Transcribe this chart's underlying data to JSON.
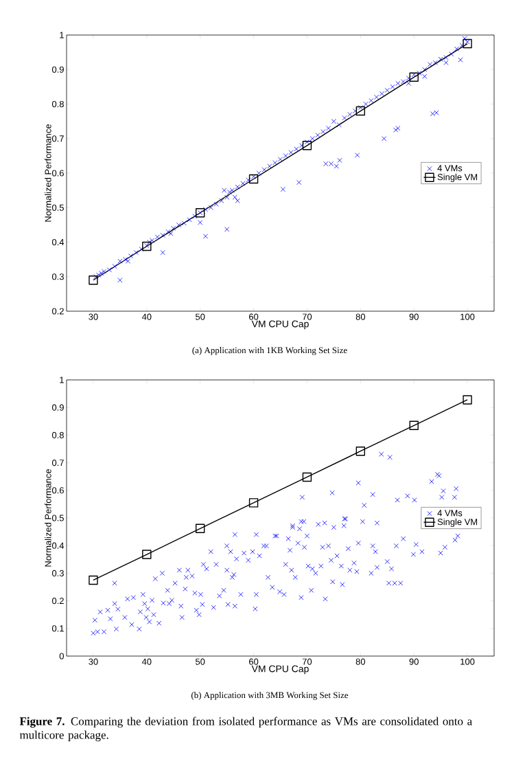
{
  "chart_data": [
    {
      "type": "scatter",
      "title": "(a)  Application with 1KB Working Set Size",
      "xlabel": "VM CPU Cap",
      "ylabel": "Normalized Performance",
      "xlim": [
        25,
        105
      ],
      "ylim": [
        0.2,
        1
      ],
      "xticks": [
        30,
        40,
        50,
        60,
        70,
        80,
        90,
        100
      ],
      "yticks": [
        0.2,
        0.3,
        0.4,
        0.5,
        0.6,
        0.7,
        0.8,
        0.9,
        1
      ],
      "legend": "right",
      "series": [
        {
          "name": "4 VMs",
          "marker": "cross",
          "color": "#0000ff",
          "x": [
            30.5,
            31,
            31.5,
            32,
            33,
            34,
            35,
            36,
            36.5,
            37,
            38,
            39,
            40,
            40.5,
            41,
            42,
            43,
            44,
            44.5,
            45,
            46,
            47,
            48,
            49,
            50,
            51,
            52,
            53,
            54,
            54.5,
            55,
            55.5,
            56,
            56.5,
            57,
            58,
            59,
            60,
            61,
            62,
            63,
            64,
            65,
            66,
            67,
            68,
            69,
            70,
            71,
            72,
            73,
            74,
            75,
            76,
            77,
            78,
            79,
            80,
            81,
            82,
            83,
            84,
            85,
            86,
            87,
            88,
            89,
            90,
            91,
            92,
            93,
            94,
            95,
            96,
            97,
            98,
            99,
            100,
            99.5,
            96,
            92,
            89,
            35,
            43,
            50,
            51,
            55,
            57,
            65.5,
            68.5,
            73.5,
            74.5,
            75.5,
            76.1,
            79.4,
            84.4,
            86.6,
            87,
            93.5,
            94.2,
            98.7
          ],
          "values": [
            0.3,
            0.305,
            0.31,
            0.315,
            0.32,
            0.33,
            0.345,
            0.35,
            0.345,
            0.36,
            0.37,
            0.38,
            0.39,
            0.4,
            0.405,
            0.415,
            0.42,
            0.43,
            0.425,
            0.44,
            0.45,
            0.455,
            0.465,
            0.475,
            0.485,
            0.495,
            0.5,
            0.51,
            0.52,
            0.55,
            0.53,
            0.545,
            0.55,
            0.53,
            0.56,
            0.57,
            0.58,
            0.59,
            0.6,
            0.61,
            0.62,
            0.63,
            0.64,
            0.65,
            0.66,
            0.67,
            0.68,
            0.69,
            0.7,
            0.71,
            0.72,
            0.73,
            0.75,
            0.74,
            0.76,
            0.77,
            0.78,
            0.79,
            0.8,
            0.81,
            0.82,
            0.83,
            0.84,
            0.85,
            0.86,
            0.865,
            0.875,
            0.885,
            0.89,
            0.9,
            0.915,
            0.92,
            0.93,
            0.935,
            0.945,
            0.96,
            0.97,
            0.98,
            0.99,
            0.92,
            0.88,
            0.86,
            0.29,
            0.37,
            0.457,
            0.417,
            0.437,
            0.52,
            0.553,
            0.573,
            0.627,
            0.627,
            0.62,
            0.637,
            0.652,
            0.7,
            0.725,
            0.73,
            0.772,
            0.775,
            0.928
          ]
        },
        {
          "name": "Single VM",
          "type": "line",
          "marker": "square",
          "color": "#000000",
          "x": [
            30,
            40,
            50,
            60,
            70,
            80,
            90,
            100
          ],
          "values": [
            0.29,
            0.388,
            0.485,
            0.583,
            0.68,
            0.78,
            0.878,
            0.975
          ]
        }
      ]
    },
    {
      "type": "scatter",
      "title": "(b)  Application with 3MB Working Set Size",
      "xlabel": "VM CPU Cap",
      "ylabel": "Normalized Performance",
      "xlim": [
        25,
        105
      ],
      "ylim": [
        0,
        1
      ],
      "xticks": [
        30,
        40,
        50,
        60,
        70,
        80,
        90,
        100
      ],
      "yticks": [
        0,
        0.1,
        0.2,
        0.3,
        0.4,
        0.5,
        0.6,
        0.7,
        0.8,
        0.9,
        1
      ],
      "legend": "right",
      "annotations": [
        "**Figure 7.** Comparing the deviation from isolated performance as VMs are consolidated onto a multicore package."
      ],
      "series": [
        {
          "name": "4 VMs",
          "marker": "cross",
          "color": "#0000ff",
          "x": [
            30,
            30.8,
            30.3,
            32,
            31.3,
            32.7,
            33.2,
            34,
            34,
            34.3,
            34.6,
            35.9,
            36.4,
            37.5,
            37.2,
            38.6,
            38.8,
            39.3,
            39.6,
            39.9,
            40.2,
            40.5,
            41,
            41.3,
            41.6,
            42.3,
            42.9,
            43.1,
            43.9,
            44.2,
            44.7,
            45.3,
            46.1,
            46.4,
            46.6,
            47.2,
            47.4,
            47.7,
            48.5,
            49,
            49.3,
            49.8,
            50.1,
            50.4,
            50.6,
            51.2,
            52,
            52.5,
            53,
            53.6,
            54.4,
            55,
            55,
            55.2,
            55.7,
            56,
            56.3,
            56.5,
            56.5,
            56.8,
            57.6,
            58.2,
            59,
            59.8,
            60.3,
            60.5,
            60.5,
            61.1,
            61.9,
            62.4,
            62.7,
            63.5,
            64.3,
            64.9,
            65.7,
            66,
            66.5,
            66.8,
            67.1,
            67.3,
            67.8,
            68.3,
            68.9,
            68.9,
            69.5,
            70,
            70.2,
            70.8,
            71,
            71.6,
            72.1,
            72.6,
            72.9,
            73.4,
            74,
            74.5,
            74.8,
            75,
            75.6,
            76.4,
            76.6,
            76.9,
            77.2,
            77.7,
            78,
            78.8,
            79.3,
            79.6,
            80.4,
            82,
            82.3,
            82.8,
            83.1,
            85,
            85.3,
            85.8,
            86.4,
            86.7,
            87.5,
            88,
            89.9,
            90.4,
            91.5,
            95,
            95.8,
            97.7,
            98.2,
            83.9,
            85.5,
            79.6,
            74.7,
            69.1,
            82.3,
            80.7,
            93.3,
            94.4,
            94.7,
            95.5,
            97.9,
            95.2,
            97.6,
            86.9,
            88.8,
            90.1,
            77,
            73.3,
            67.3,
            68.6,
            69.4,
            83.1,
            64
          ],
          "values": [
            0.083,
            0.088,
            0.13,
            0.088,
            0.16,
            0.166,
            0.135,
            0.19,
            0.264,
            0.098,
            0.17,
            0.14,
            0.207,
            0.212,
            0.114,
            0.098,
            0.16,
            0.223,
            0.19,
            0.14,
            0.171,
            0.124,
            0.202,
            0.15,
            0.28,
            0.119,
            0.3,
            0.192,
            0.238,
            0.19,
            0.202,
            0.264,
            0.311,
            0.181,
            0.14,
            0.243,
            0.285,
            0.311,
            0.29,
            0.228,
            0.166,
            0.15,
            0.223,
            0.187,
            0.332,
            0.316,
            0.378,
            0.176,
            0.332,
            0.218,
            0.238,
            0.399,
            0.311,
            0.187,
            0.378,
            0.285,
            0.295,
            0.44,
            0.181,
            0.352,
            0.223,
            0.373,
            0.347,
            0.378,
            0.171,
            0.44,
            0.223,
            0.363,
            0.399,
            0.399,
            0.285,
            0.249,
            0.435,
            0.233,
            0.223,
            0.332,
            0.425,
            0.383,
            0.311,
            0.472,
            0.285,
            0.409,
            0.487,
            0.212,
            0.394,
            0.435,
            0.326,
            0.238,
            0.316,
            0.3,
            0.477,
            0.326,
            0.394,
            0.207,
            0.399,
            0.347,
            0.269,
            0.466,
            0.363,
            0.326,
            0.259,
            0.472,
            0.497,
            0.389,
            0.311,
            0.337,
            0.306,
            0.409,
            0.487,
            0.3,
            0.399,
            0.378,
            0.321,
            0.342,
            0.264,
            0.316,
            0.264,
            0.399,
            0.264,
            0.425,
            0.368,
            0.404,
            0.378,
            0.373,
            0.394,
            0.42,
            0.435,
            0.731,
            0.72,
            0.627,
            0.591,
            0.575,
            0.585,
            0.546,
            0.632,
            0.658,
            0.653,
            0.598,
            0.606,
            0.575,
            0.575,
            0.565,
            0.58,
            0.565,
            0.497,
            0.482,
            0.466,
            0.461,
            0.487,
            0.482,
            0.435
          ]
        },
        {
          "name": "Single VM",
          "type": "line",
          "marker": "square",
          "color": "#000000",
          "x": [
            30,
            40,
            50,
            60,
            70,
            80,
            90,
            100
          ],
          "values": [
            0.275,
            0.368,
            0.462,
            0.555,
            0.648,
            0.742,
            0.835,
            0.928
          ]
        }
      ]
    }
  ]
}
